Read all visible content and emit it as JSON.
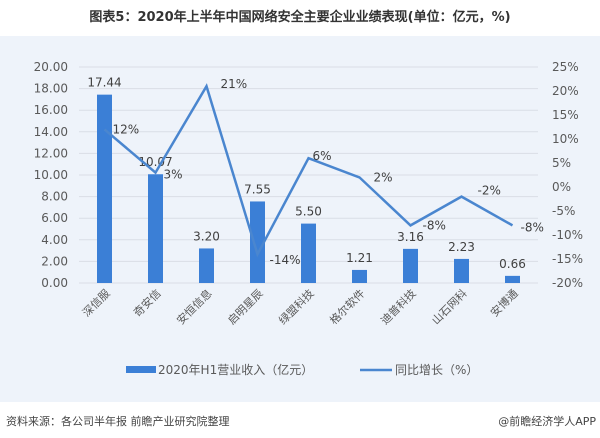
{
  "title": "图表5：2020年上半年中国网络安全主要企业业绩表现(单位：亿元，%)",
  "footer": {
    "source": "资料来源：各公司半年报 前瞻产业研究院整理",
    "credit": "@前瞻经济学人APP"
  },
  "colors": {
    "bar": "#3b7fd6",
    "line": "#4a86cf",
    "panel_bg": "#eef3fa",
    "grid": "#d9dee6"
  },
  "chart_data": {
    "type": "bar+line",
    "title": "图表5：2020年上半年中国网络安全主要企业业绩表现(单位：亿元，%)",
    "categories": [
      "深信服",
      "奇安信",
      "安恒信息",
      "启明星辰",
      "绿盟科技",
      "格尔软件",
      "迪普科技",
      "山石网科",
      "安博通"
    ],
    "series": [
      {
        "name": "2020年H1营业收入（亿元）",
        "type": "bar",
        "axis": "left",
        "values": [
          17.44,
          10.07,
          3.2,
          7.55,
          5.5,
          1.21,
          3.16,
          2.23,
          0.66
        ],
        "labels": [
          "17.44",
          "10.07",
          "3.20",
          "7.55",
          "5.50",
          "1.21",
          "3.16",
          "2.23",
          "0.66"
        ]
      },
      {
        "name": "同比增长（%）",
        "type": "line",
        "axis": "right",
        "values": [
          12,
          3,
          21,
          -14,
          6,
          2,
          -8,
          -2,
          -8
        ],
        "labels": [
          "12%",
          "3%",
          "21%",
          "-14%",
          "6%",
          "2%",
          "-8%",
          "-2%",
          "-8%"
        ]
      }
    ],
    "left_axis": {
      "ylim": [
        0,
        20
      ],
      "ticks": [
        "0.00",
        "2.00",
        "4.00",
        "6.00",
        "8.00",
        "10.00",
        "12.00",
        "14.00",
        "16.00",
        "18.00",
        "20.00"
      ]
    },
    "right_axis": {
      "ylim": [
        -20,
        25
      ],
      "ticks": [
        "-20%",
        "-15%",
        "-10%",
        "-5%",
        "0%",
        "5%",
        "10%",
        "15%",
        "20%",
        "25%"
      ]
    },
    "xlabel": "",
    "ylabel": "",
    "grid": true,
    "legend_position": "bottom"
  }
}
